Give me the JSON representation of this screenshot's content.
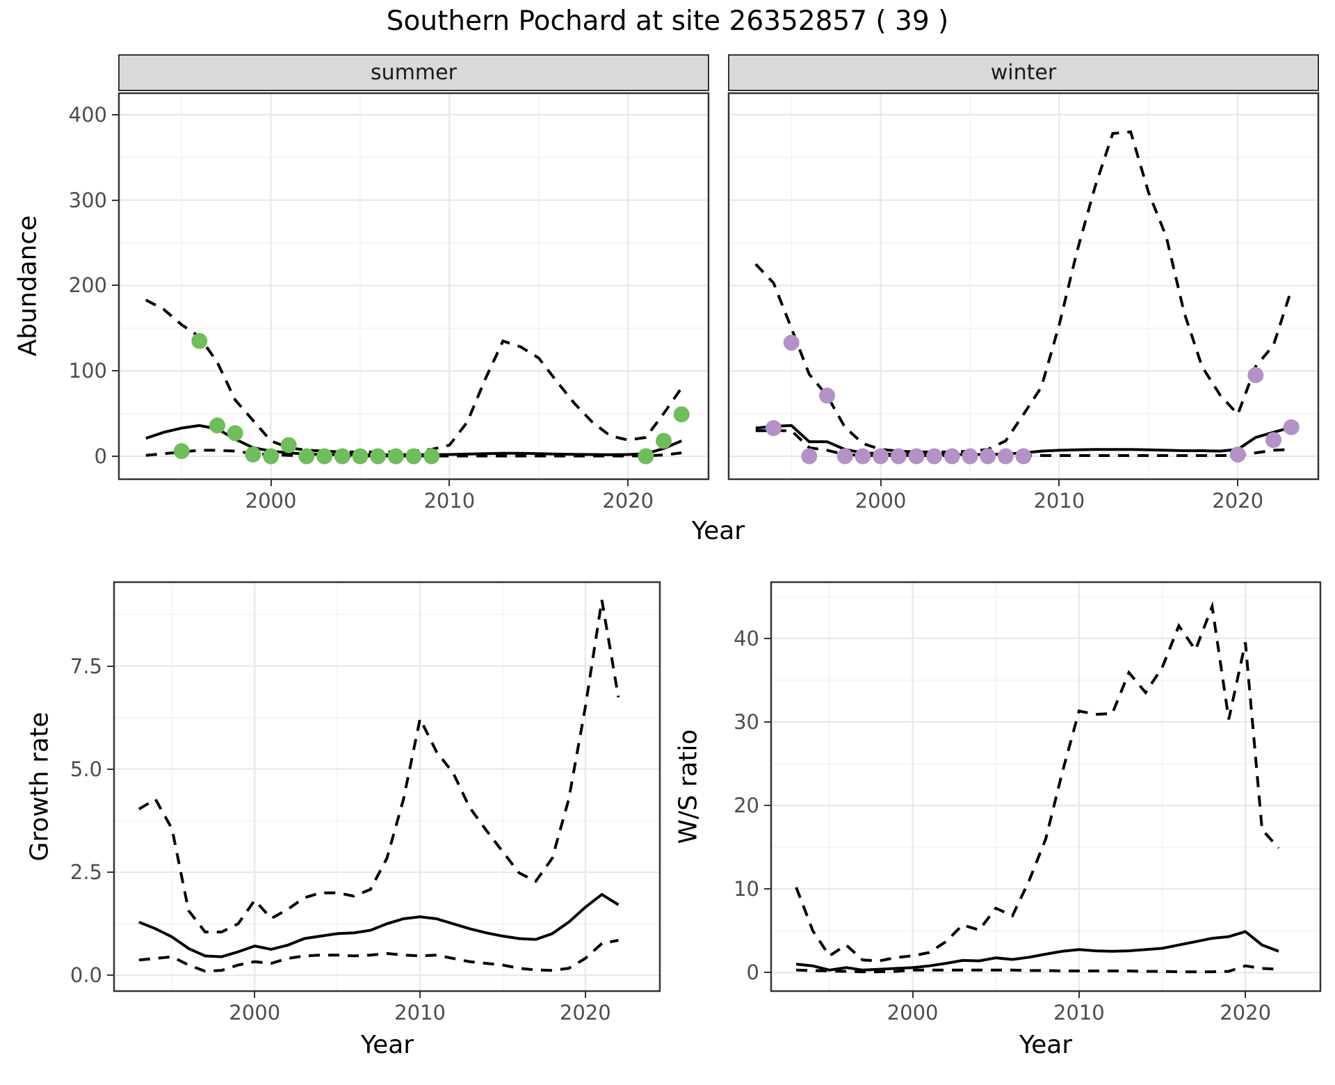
{
  "title": "Southern Pochard at site 26352857 ( 39 )",
  "axes": {
    "abundance_title": "Abundance",
    "growth_title": "Growth rate",
    "ws_title": "W/S ratio",
    "year_title": "Year"
  },
  "facets": {
    "summer": "summer",
    "winter": "winter"
  },
  "colors": {
    "summer_point": "#6ebe59",
    "winter_point": "#b491c8",
    "line": "#000000",
    "strip_bg": "#d9d9d9",
    "panel_border": "#333333",
    "grid_major": "#e8e8e8",
    "grid_minor": "#f3f3f3",
    "tick_label": "#4d4d4d"
  },
  "chart_data": [
    {
      "id": "abundance-summer",
      "type": "line",
      "facet_label": "summer",
      "ylabel": "Abundance",
      "xlabel": "Year",
      "xlim": [
        1991.45,
        2024.55
      ],
      "ylim": [
        -27.7,
        426
      ],
      "x_ticks": {
        "values": [
          2000,
          2010,
          2020
        ],
        "labels": [
          "2000",
          "2010",
          "2020"
        ]
      },
      "x_minor": [
        1995,
        2005,
        2015
      ],
      "y_ticks": {
        "values": [
          0,
          100,
          200,
          300,
          400
        ],
        "labels": [
          "0",
          "100",
          "200",
          "300",
          "400"
        ]
      },
      "y_minor": [
        50,
        150,
        250,
        350
      ],
      "show_y_labels": true,
      "years": [
        1993,
        1994,
        1995,
        1996,
        1997,
        1998,
        1999,
        2000,
        2001,
        2002,
        2003,
        2004,
        2005,
        2006,
        2007,
        2008,
        2009,
        2010,
        2011,
        2012,
        2013,
        2014,
        2015,
        2016,
        2017,
        2018,
        2019,
        2020,
        2021,
        2022,
        2023
      ],
      "series": [
        {
          "name": "upper_ci",
          "linetype": "dashed",
          "values": [
            183,
            172,
            154,
            140,
            110,
            66,
            42,
            18,
            10,
            7,
            6,
            5,
            5,
            5,
            5,
            6,
            8,
            13,
            40,
            90,
            135,
            128,
            115,
            88,
            62,
            40,
            24,
            19,
            22,
            50,
            80
          ]
        },
        {
          "name": "lower_ci",
          "linetype": "dashed",
          "values": [
            1,
            3,
            5,
            7,
            7,
            6,
            3,
            2,
            1,
            0.5,
            0.3,
            0.3,
            0.3,
            0.3,
            0.3,
            0.3,
            0.3,
            0.3,
            0.3,
            0.3,
            0.3,
            0.3,
            0.3,
            0.3,
            0.3,
            0.3,
            0.3,
            0.3,
            0.5,
            1.5,
            4
          ]
        },
        {
          "name": "fitted_mean",
          "linetype": "solid",
          "values": [
            21,
            28,
            33,
            36,
            32,
            20,
            10,
            6,
            4,
            2.5,
            2,
            1.8,
            1.8,
            1.8,
            1.8,
            1.8,
            1.8,
            2,
            2.5,
            3,
            3.5,
            3.5,
            3,
            2.5,
            2.2,
            2,
            1.8,
            2,
            3,
            9,
            18
          ]
        }
      ],
      "points": {
        "name": "observed-counts",
        "color": "#6ebe59",
        "x": [
          1995,
          1996,
          1997,
          1998,
          1999,
          2000,
          2001,
          2002,
          2003,
          2004,
          2005,
          2006,
          2007,
          2008,
          2009,
          2021,
          2022,
          2023
        ],
        "y": [
          6,
          135,
          36,
          27,
          2,
          0,
          13,
          0,
          0,
          0,
          0,
          0,
          0,
          0,
          0,
          0,
          18,
          49
        ]
      }
    },
    {
      "id": "abundance-winter",
      "type": "line",
      "facet_label": "winter",
      "ylabel": "Abundance",
      "xlabel": "Year",
      "xlim": [
        1991.45,
        2024.55
      ],
      "ylim": [
        -27.7,
        426
      ],
      "x_ticks": {
        "values": [
          2000,
          2010,
          2020
        ],
        "labels": [
          "2000",
          "2010",
          "2020"
        ]
      },
      "x_minor": [
        1995,
        2005,
        2015
      ],
      "y_ticks": {
        "values": [
          0,
          100,
          200,
          300,
          400
        ],
        "labels": [
          "0",
          "100",
          "200",
          "300",
          "400"
        ]
      },
      "y_minor": [
        50,
        150,
        250,
        350
      ],
      "show_y_labels": false,
      "years": [
        1993,
        1994,
        1995,
        1996,
        1997,
        1998,
        1999,
        2000,
        2001,
        2002,
        2003,
        2004,
        2005,
        2006,
        2007,
        2008,
        2009,
        2010,
        2011,
        2012,
        2013,
        2014,
        2015,
        2016,
        2017,
        2018,
        2019,
        2020,
        2021,
        2022,
        2023
      ],
      "series": [
        {
          "name": "upper_ci",
          "linetype": "dashed",
          "values": [
            225,
            203,
            150,
            96,
            71,
            34,
            15,
            8,
            6,
            5,
            5,
            5,
            6,
            8,
            18,
            49,
            81,
            154,
            240,
            315,
            378,
            380,
            309,
            257,
            168,
            105,
            72,
            49,
            105,
            130,
            195
          ]
        },
        {
          "name": "lower_ci",
          "linetype": "dashed",
          "values": [
            30,
            30,
            30,
            10,
            7,
            2,
            1,
            0.8,
            0.8,
            0.8,
            0.8,
            0.8,
            0.8,
            0.8,
            0.8,
            0.8,
            0.8,
            0.8,
            0.8,
            0.8,
            0.8,
            0.8,
            0.8,
            0.8,
            0.8,
            0.8,
            0.8,
            1,
            4,
            7,
            8
          ]
        },
        {
          "name": "fitted_mean",
          "linetype": "solid",
          "values": [
            33,
            35,
            36,
            17,
            17,
            8,
            4,
            3,
            2,
            2,
            2,
            2,
            2,
            2,
            2.5,
            4,
            6,
            7,
            7.5,
            8,
            8,
            8,
            7.5,
            7,
            6.5,
            6.5,
            6,
            8,
            22,
            28,
            34
          ]
        }
      ],
      "points": {
        "name": "observed-counts",
        "color": "#b491c8",
        "x": [
          1994,
          1995,
          1996,
          1997,
          1998,
          1999,
          2000,
          2001,
          2002,
          2003,
          2004,
          2005,
          2006,
          2007,
          2008,
          2020,
          2021,
          2022,
          2023
        ],
        "y": [
          33,
          133,
          0,
          71,
          0,
          0,
          0,
          0,
          0,
          0,
          0,
          0,
          0,
          0,
          0,
          2,
          95,
          19,
          34
        ]
      }
    },
    {
      "id": "growth-rate",
      "type": "line",
      "facet_label": "",
      "ylabel": "Growth rate",
      "xlabel": "Year",
      "xlim": [
        1991.45,
        2024.55
      ],
      "ylim": [
        -0.4,
        9.55
      ],
      "x_ticks": {
        "values": [
          2000,
          2010,
          2020
        ],
        "labels": [
          "2000",
          "2010",
          "2020"
        ]
      },
      "x_minor": [
        1995,
        2005,
        2015
      ],
      "y_ticks": {
        "values": [
          0,
          2.5,
          5,
          7.5
        ],
        "labels": [
          "0.0",
          "2.5",
          "5.0",
          "7.5"
        ]
      },
      "y_minor": [
        1.25,
        3.75,
        6.25,
        8.75
      ],
      "show_y_labels": true,
      "years": [
        1993,
        1994,
        1995,
        1996,
        1997,
        1998,
        1999,
        2000,
        2001,
        2002,
        2003,
        2004,
        2005,
        2006,
        2007,
        2008,
        2009,
        2010,
        2011,
        2012,
        2013,
        2014,
        2015,
        2016,
        2017,
        2018,
        2019,
        2020,
        2021,
        2022
      ],
      "series": [
        {
          "name": "upper_ci",
          "linetype": "dashed",
          "values": [
            4.03,
            4.27,
            3.55,
            1.57,
            1.05,
            1.05,
            1.25,
            1.82,
            1.38,
            1.6,
            1.88,
            2.0,
            2.0,
            1.92,
            2.08,
            2.84,
            4.27,
            6.22,
            5.42,
            4.91,
            4.07,
            3.52,
            3.0,
            2.48,
            2.28,
            2.84,
            4.27,
            6.5,
            9.1,
            6.74
          ]
        },
        {
          "name": "lower_ci",
          "linetype": "dashed",
          "values": [
            0.37,
            0.41,
            0.45,
            0.25,
            0.1,
            0.12,
            0.25,
            0.33,
            0.29,
            0.41,
            0.47,
            0.49,
            0.49,
            0.47,
            0.49,
            0.53,
            0.49,
            0.47,
            0.49,
            0.41,
            0.33,
            0.29,
            0.25,
            0.17,
            0.13,
            0.12,
            0.17,
            0.41,
            0.77,
            0.85
          ]
        },
        {
          "name": "fitted_mean",
          "linetype": "solid",
          "values": [
            1.29,
            1.13,
            0.93,
            0.65,
            0.47,
            0.45,
            0.57,
            0.71,
            0.63,
            0.73,
            0.89,
            0.95,
            1.01,
            1.03,
            1.09,
            1.25,
            1.37,
            1.42,
            1.37,
            1.25,
            1.13,
            1.03,
            0.95,
            0.89,
            0.87,
            1.01,
            1.29,
            1.65,
            1.96,
            1.71
          ]
        }
      ],
      "points": null
    },
    {
      "id": "ws-ratio",
      "type": "line",
      "facet_label": "",
      "ylabel": "W/S ratio",
      "xlabel": "Year",
      "xlim": [
        1991.45,
        2024.55
      ],
      "ylim": [
        -2.3,
        46.8
      ],
      "x_ticks": {
        "values": [
          2000,
          2010,
          2020
        ],
        "labels": [
          "2000",
          "2010",
          "2020"
        ]
      },
      "x_minor": [
        1995,
        2005,
        2015
      ],
      "y_ticks": {
        "values": [
          0,
          10,
          20,
          30,
          40
        ],
        "labels": [
          "0",
          "10",
          "20",
          "30",
          "40"
        ]
      },
      "y_minor": [
        5,
        15,
        25,
        35,
        45
      ],
      "show_y_labels": true,
      "years": [
        1993,
        1994,
        1995,
        1996,
        1997,
        1998,
        1999,
        2000,
        2001,
        2002,
        2003,
        2004,
        2005,
        2006,
        2007,
        2008,
        2009,
        2010,
        2011,
        2012,
        2013,
        2014,
        2015,
        2016,
        2017,
        2018,
        2019,
        2020,
        2021,
        2022
      ],
      "series": [
        {
          "name": "upper_ci",
          "linetype": "dashed",
          "values": [
            10.2,
            5.0,
            2.0,
            3.3,
            1.5,
            1.4,
            1.8,
            2.0,
            2.4,
            3.7,
            5.7,
            5.1,
            7.7,
            6.8,
            11,
            16,
            24,
            31.3,
            30.9,
            31,
            35.9,
            33.5,
            36.5,
            41.5,
            38.6,
            43.8,
            30.3,
            39.5,
            17.1,
            14.9
          ]
        },
        {
          "name": "lower_ci",
          "linetype": "dashed",
          "values": [
            0.3,
            0.25,
            0.2,
            0.15,
            0.1,
            0.1,
            0.15,
            0.3,
            0.3,
            0.3,
            0.3,
            0.3,
            0.3,
            0.3,
            0.25,
            0.25,
            0.2,
            0.2,
            0.2,
            0.2,
            0.2,
            0.15,
            0.15,
            0.1,
            0.1,
            0.1,
            0.15,
            0.8,
            0.5,
            0.4
          ]
        },
        {
          "name": "fitted_mean",
          "linetype": "solid",
          "values": [
            1.0,
            0.8,
            0.3,
            0.6,
            0.3,
            0.4,
            0.5,
            0.6,
            0.8,
            1.1,
            1.45,
            1.4,
            1.76,
            1.57,
            1.84,
            2.2,
            2.55,
            2.75,
            2.6,
            2.55,
            2.6,
            2.75,
            2.9,
            3.3,
            3.7,
            4.1,
            4.3,
            4.9,
            3.3,
            2.55
          ]
        }
      ],
      "points": null
    }
  ]
}
